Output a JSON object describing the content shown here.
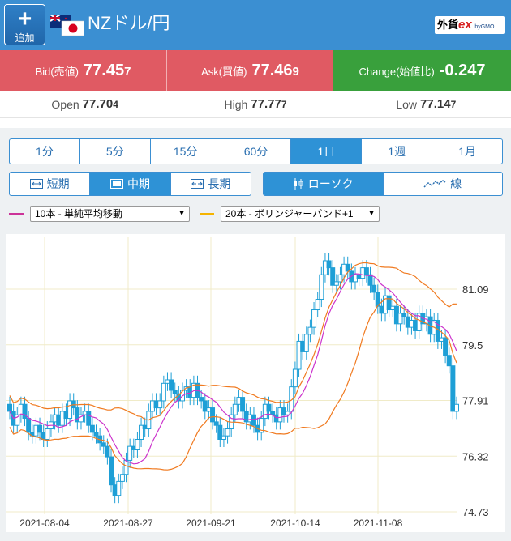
{
  "header": {
    "add_label": "追加",
    "pair_title": "NZドル/円",
    "logo_main": "外貨",
    "logo_ex": "ex",
    "logo_sub": "byGMO"
  },
  "quotes": {
    "bid_label": "Bid(売値)",
    "bid_value_main": "77.45",
    "bid_value_last": "7",
    "ask_label": "Ask(買値)",
    "ask_value_main": "77.46",
    "ask_value_last": "9",
    "change_label": "Change(始値比)",
    "change_value": "-0.247"
  },
  "ohl": {
    "open_label": "Open",
    "open_main": "77.70",
    "open_last": "4",
    "high_label": "High",
    "high_main": "77.77",
    "high_last": "7",
    "low_label": "Low",
    "low_main": "77.14",
    "low_last": "7"
  },
  "periods": [
    "1分",
    "5分",
    "15分",
    "60分",
    "1日",
    "1週",
    "1月"
  ],
  "active_period": "1日",
  "ranges": [
    "短期",
    "中期",
    "長期"
  ],
  "active_range": "中期",
  "chart_types": [
    "ローソク",
    "線"
  ],
  "active_chart_type": "ローソク",
  "indicators": {
    "ma_select": "10本 - 単純平均移動",
    "ma_color": "#cc3399",
    "bb_select": "20本 - ボリンジャーバンド+1",
    "bb_color": "#f5b400"
  },
  "colors": {
    "header_blue": "#3b8fd2",
    "quote_red": "#e05a63",
    "change_green": "#39a03c",
    "candle": "#1e9fd6",
    "ma_line": "#cc33cc",
    "band_line": "#f07a20"
  },
  "chart_data": {
    "type": "candlestick",
    "x_tick_labels": [
      "2021-08-04",
      "2021-08-27",
      "2021-09-21",
      "2021-10-14",
      "2021-11-08"
    ],
    "y_tick_labels": [
      "81.09",
      "79.5",
      "77.91",
      "76.32",
      "74.73"
    ],
    "ylim": [
      74.73,
      81.09
    ],
    "grid": true,
    "close": [
      77.6,
      77.2,
      77.5,
      77.8,
      77.4,
      77.0,
      76.9,
      77.2,
      77.0,
      76.8,
      77.1,
      77.3,
      77.5,
      77.2,
      77.6,
      77.4,
      77.9,
      77.7,
      77.3,
      77.5,
      77.6,
      77.2,
      77.0,
      76.9,
      76.7,
      76.6,
      76.3,
      75.5,
      75.2,
      75.6,
      75.8,
      76.2,
      76.6,
      76.5,
      76.8,
      77.2,
      77.1,
      77.6,
      77.9,
      77.7,
      77.9,
      78.4,
      78.5,
      78.2,
      78.1,
      77.9,
      78.2,
      78.3,
      78.0,
      78.4,
      78.0,
      77.9,
      77.6,
      77.7,
      77.3,
      77.2,
      76.8,
      76.9,
      77.1,
      77.5,
      77.8,
      78.0,
      77.6,
      77.3,
      77.5,
      77.2,
      77.0,
      77.4,
      77.8,
      77.6,
      77.5,
      77.3,
      77.7,
      77.5,
      77.6,
      78.3,
      78.8,
      79.6,
      79.3,
      79.8,
      80.0,
      80.5,
      80.8,
      81.5,
      81.9,
      81.7,
      81.2,
      81.3,
      81.5,
      81.8,
      81.6,
      81.3,
      81.5,
      81.4,
      81.7,
      81.5,
      81.2,
      81.0,
      80.6,
      80.4,
      80.9,
      80.5,
      80.6,
      80.1,
      80.4,
      80.3,
      80.0,
      80.2,
      79.9,
      80.4,
      80.1,
      80.3,
      79.8,
      80.2,
      79.6,
      79.7,
      79.2,
      78.9,
      77.6,
      77.8
    ]
  }
}
